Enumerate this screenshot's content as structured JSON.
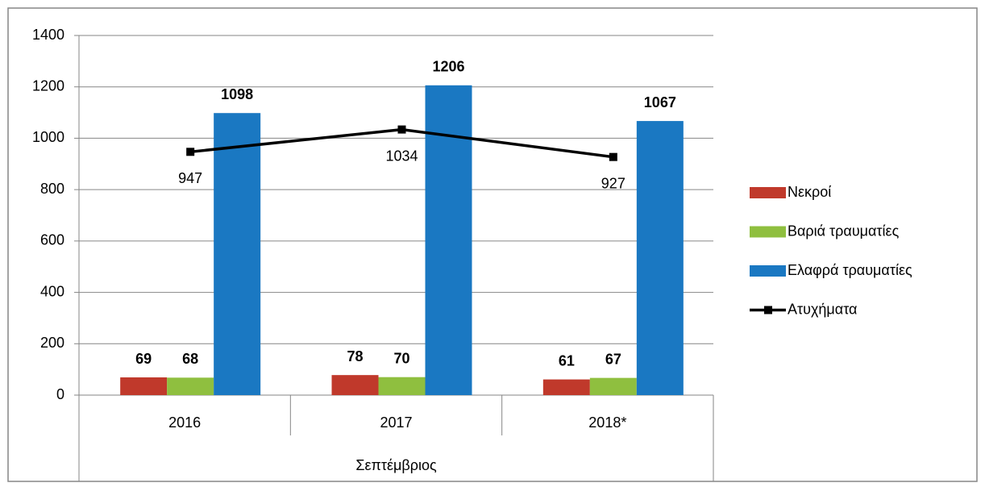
{
  "chart_data": {
    "type": "bar",
    "categories": [
      "2016",
      "2017",
      "2018*"
    ],
    "category_group": "Σεπτέμβριος",
    "series": [
      {
        "name": "Νεκροί",
        "color": "#c0392b",
        "values": [
          69,
          78,
          61
        ]
      },
      {
        "name": "Βαριά τραυματίες",
        "color": "#8fbf3f",
        "values": [
          68,
          70,
          67
        ]
      },
      {
        "name": "Ελαφρά τραυματίες",
        "color": "#1a78c2",
        "values": [
          1098,
          1206,
          1067
        ]
      },
      {
        "name": "Ατυχήματα",
        "color": "#000000",
        "type": "line",
        "values": [
          947,
          1034,
          927
        ]
      }
    ],
    "ylim": [
      0,
      1400
    ],
    "yticks": [
      0,
      200,
      400,
      600,
      800,
      1000,
      1200,
      1400
    ],
    "grid": true,
    "legend": "right"
  }
}
